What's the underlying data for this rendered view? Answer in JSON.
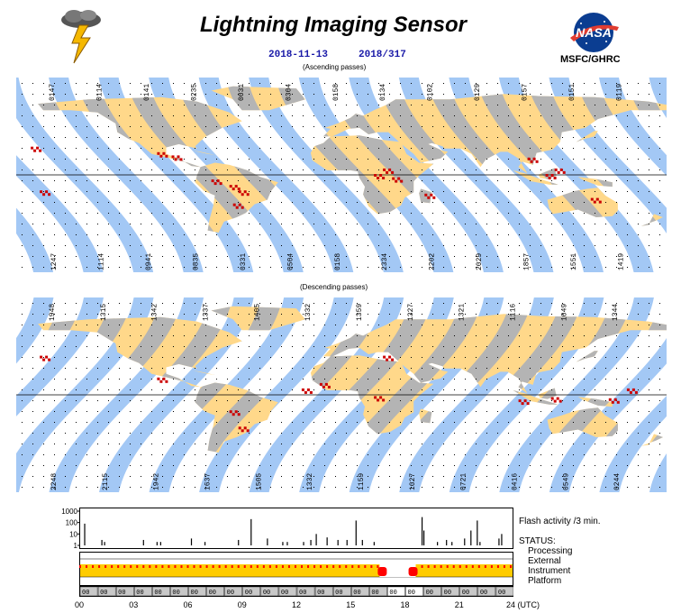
{
  "header": {
    "title": "Lightning Imaging Sensor",
    "date": "2018-11-13",
    "day_of_year": "2018/317",
    "org": "MSFC/GHRC",
    "logo_text": "NASA"
  },
  "ascending": {
    "label": "(Ascending passes)",
    "top_times": [
      "0147",
      "0114",
      "0141",
      "0235",
      "0031",
      "0304",
      "0158",
      "0134",
      "0102",
      "0129",
      "0157",
      "0151",
      "0119"
    ],
    "bottom_times": [
      "1247",
      "1114",
      "0941",
      "0835",
      "0331",
      "0504",
      "0158",
      "2334",
      "2202",
      "2029",
      "1857",
      "1551",
      "1419"
    ]
  },
  "descending": {
    "label": "(Descending passes)",
    "top_times": [
      "1948",
      "1315",
      "1342",
      "1337",
      "1405",
      "1332",
      "1359",
      "1327",
      "1321",
      "1116",
      "1049",
      "1344"
    ],
    "bottom_times": [
      "2248",
      "2115",
      "1942",
      "1637",
      "1505",
      "1332",
      "1159",
      "1027",
      "0721",
      "0416",
      "0549",
      "0244"
    ]
  },
  "colors": {
    "ocean_swath": "#a3c8f5",
    "land_swath": "#ffd88a",
    "land": "#b4b4b4",
    "flash": "#cc0000",
    "status_ok": "#ffcc00",
    "status_bad": "#ff0000",
    "title_blue": "#1a1aa8"
  },
  "chart_data": {
    "type": "bar",
    "title": "Flash activity /3 min.",
    "y_scale": "log",
    "ylim": [
      1,
      1000
    ],
    "y_ticks": [
      "1000",
      "100",
      "10",
      "1"
    ],
    "x_ticks": [
      "00",
      "03",
      "06",
      "09",
      "12",
      "15",
      "18",
      "21",
      "24 (UTC)"
    ],
    "x_unit": "UTC hours",
    "xlim": [
      0,
      24
    ],
    "series": [
      {
        "x": [
          0.3,
          1.25,
          1.4,
          3.55,
          4.3,
          4.5,
          6.2,
          6.95,
          8.8,
          9.5,
          10.4,
          11.25,
          11.5,
          12.4,
          12.8,
          13.1,
          13.7,
          14.3,
          14.8,
          15.3,
          15.65,
          16.3,
          18.95,
          19.05,
          19.8,
          20.3,
          20.6,
          21.3,
          21.65,
          22.0,
          22.15,
          23.2,
          23.35
        ],
        "values": [
          80,
          3,
          2,
          3,
          2,
          2,
          4,
          2,
          3,
          200,
          4,
          2,
          2,
          2,
          3,
          10,
          5,
          3,
          3,
          150,
          3,
          2,
          300,
          20,
          2,
          3,
          2,
          4,
          20,
          150,
          2,
          4,
          10
        ]
      }
    ],
    "status_label": "STATUS:",
    "status_rows": [
      "Processing",
      "External",
      "Instrument",
      "Platform"
    ],
    "gaps_hours": [
      [
        16.6,
        18.6
      ]
    ]
  }
}
